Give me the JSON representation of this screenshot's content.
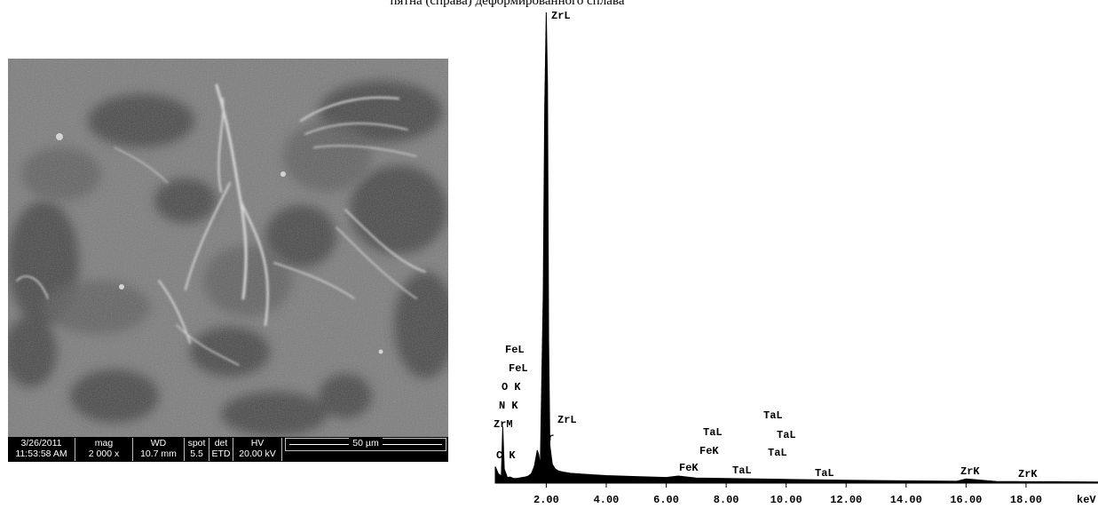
{
  "caption": "пятна (справа) деформированного сплава",
  "sem": {
    "date": "3/26/2011",
    "time": "11:53:58 AM",
    "mag_label": "mag",
    "mag_value": "2 000 x",
    "wd_label": "WD",
    "wd_value": "10.7 mm",
    "spot_label": "spot",
    "spot_value": "5.5",
    "det_label": "det",
    "det_value": "ETD",
    "hv_label": "HV",
    "hv_value": "20.00 kV",
    "scale_bar": "50 µm"
  },
  "chart_data": {
    "type": "line",
    "title": "",
    "xlabel": "keV",
    "ylabel": "",
    "xlim": [
      0.3,
      20.4
    ],
    "ylim": [
      0,
      100
    ],
    "x_ticks": [
      "2.00",
      "4.00",
      "6.00",
      "8.00",
      "10.00",
      "12.00",
      "14.00",
      "16.00",
      "18.00"
    ],
    "x_tick_values": [
      2,
      4,
      6,
      8,
      10,
      12,
      14,
      16,
      18
    ],
    "series": [
      {
        "x": [
          0.3,
          0.4,
          0.5,
          0.55,
          0.6,
          0.7,
          0.8,
          0.9,
          1.0,
          1.1,
          1.2,
          1.3,
          1.4,
          1.5,
          1.6,
          1.7,
          1.75,
          1.8,
          1.9,
          1.95,
          2.0,
          2.04,
          2.08,
          2.12,
          2.2,
          2.3,
          2.4,
          2.6,
          2.8,
          3.0,
          3.5,
          4.0,
          5.0,
          6.0,
          6.4,
          7.0,
          8.0,
          9.0,
          10.0,
          11.0,
          12.0,
          14.0,
          15.7,
          16.0,
          17.0,
          18.0,
          19.0,
          20.4
        ],
        "y": [
          3.5,
          2.0,
          1.5,
          12.0,
          3.0,
          1.2,
          1.3,
          1.0,
          1.0,
          1.1,
          1.2,
          1.3,
          1.5,
          2.0,
          3.5,
          7.0,
          6.0,
          3.5,
          40.0,
          80.0,
          100.0,
          85.0,
          30.0,
          8.0,
          4.0,
          3.0,
          2.6,
          2.3,
          2.1,
          2.0,
          1.8,
          1.6,
          1.4,
          1.2,
          1.5,
          1.1,
          1.0,
          0.9,
          0.8,
          0.7,
          0.6,
          0.5,
          0.4,
          0.9,
          0.35,
          0.3,
          0.3,
          0.25
        ]
      }
    ],
    "peak_labels": [
      "ZrL",
      "FeL",
      "FeL",
      "O K",
      "N K",
      "ZrM",
      "C K",
      "Zr",
      "ZrL",
      "TaL",
      "FeK",
      "FeK",
      "TaL",
      "TaL",
      "TaL",
      "TaL",
      "TaL",
      "ZrK",
      "ZrK"
    ]
  }
}
